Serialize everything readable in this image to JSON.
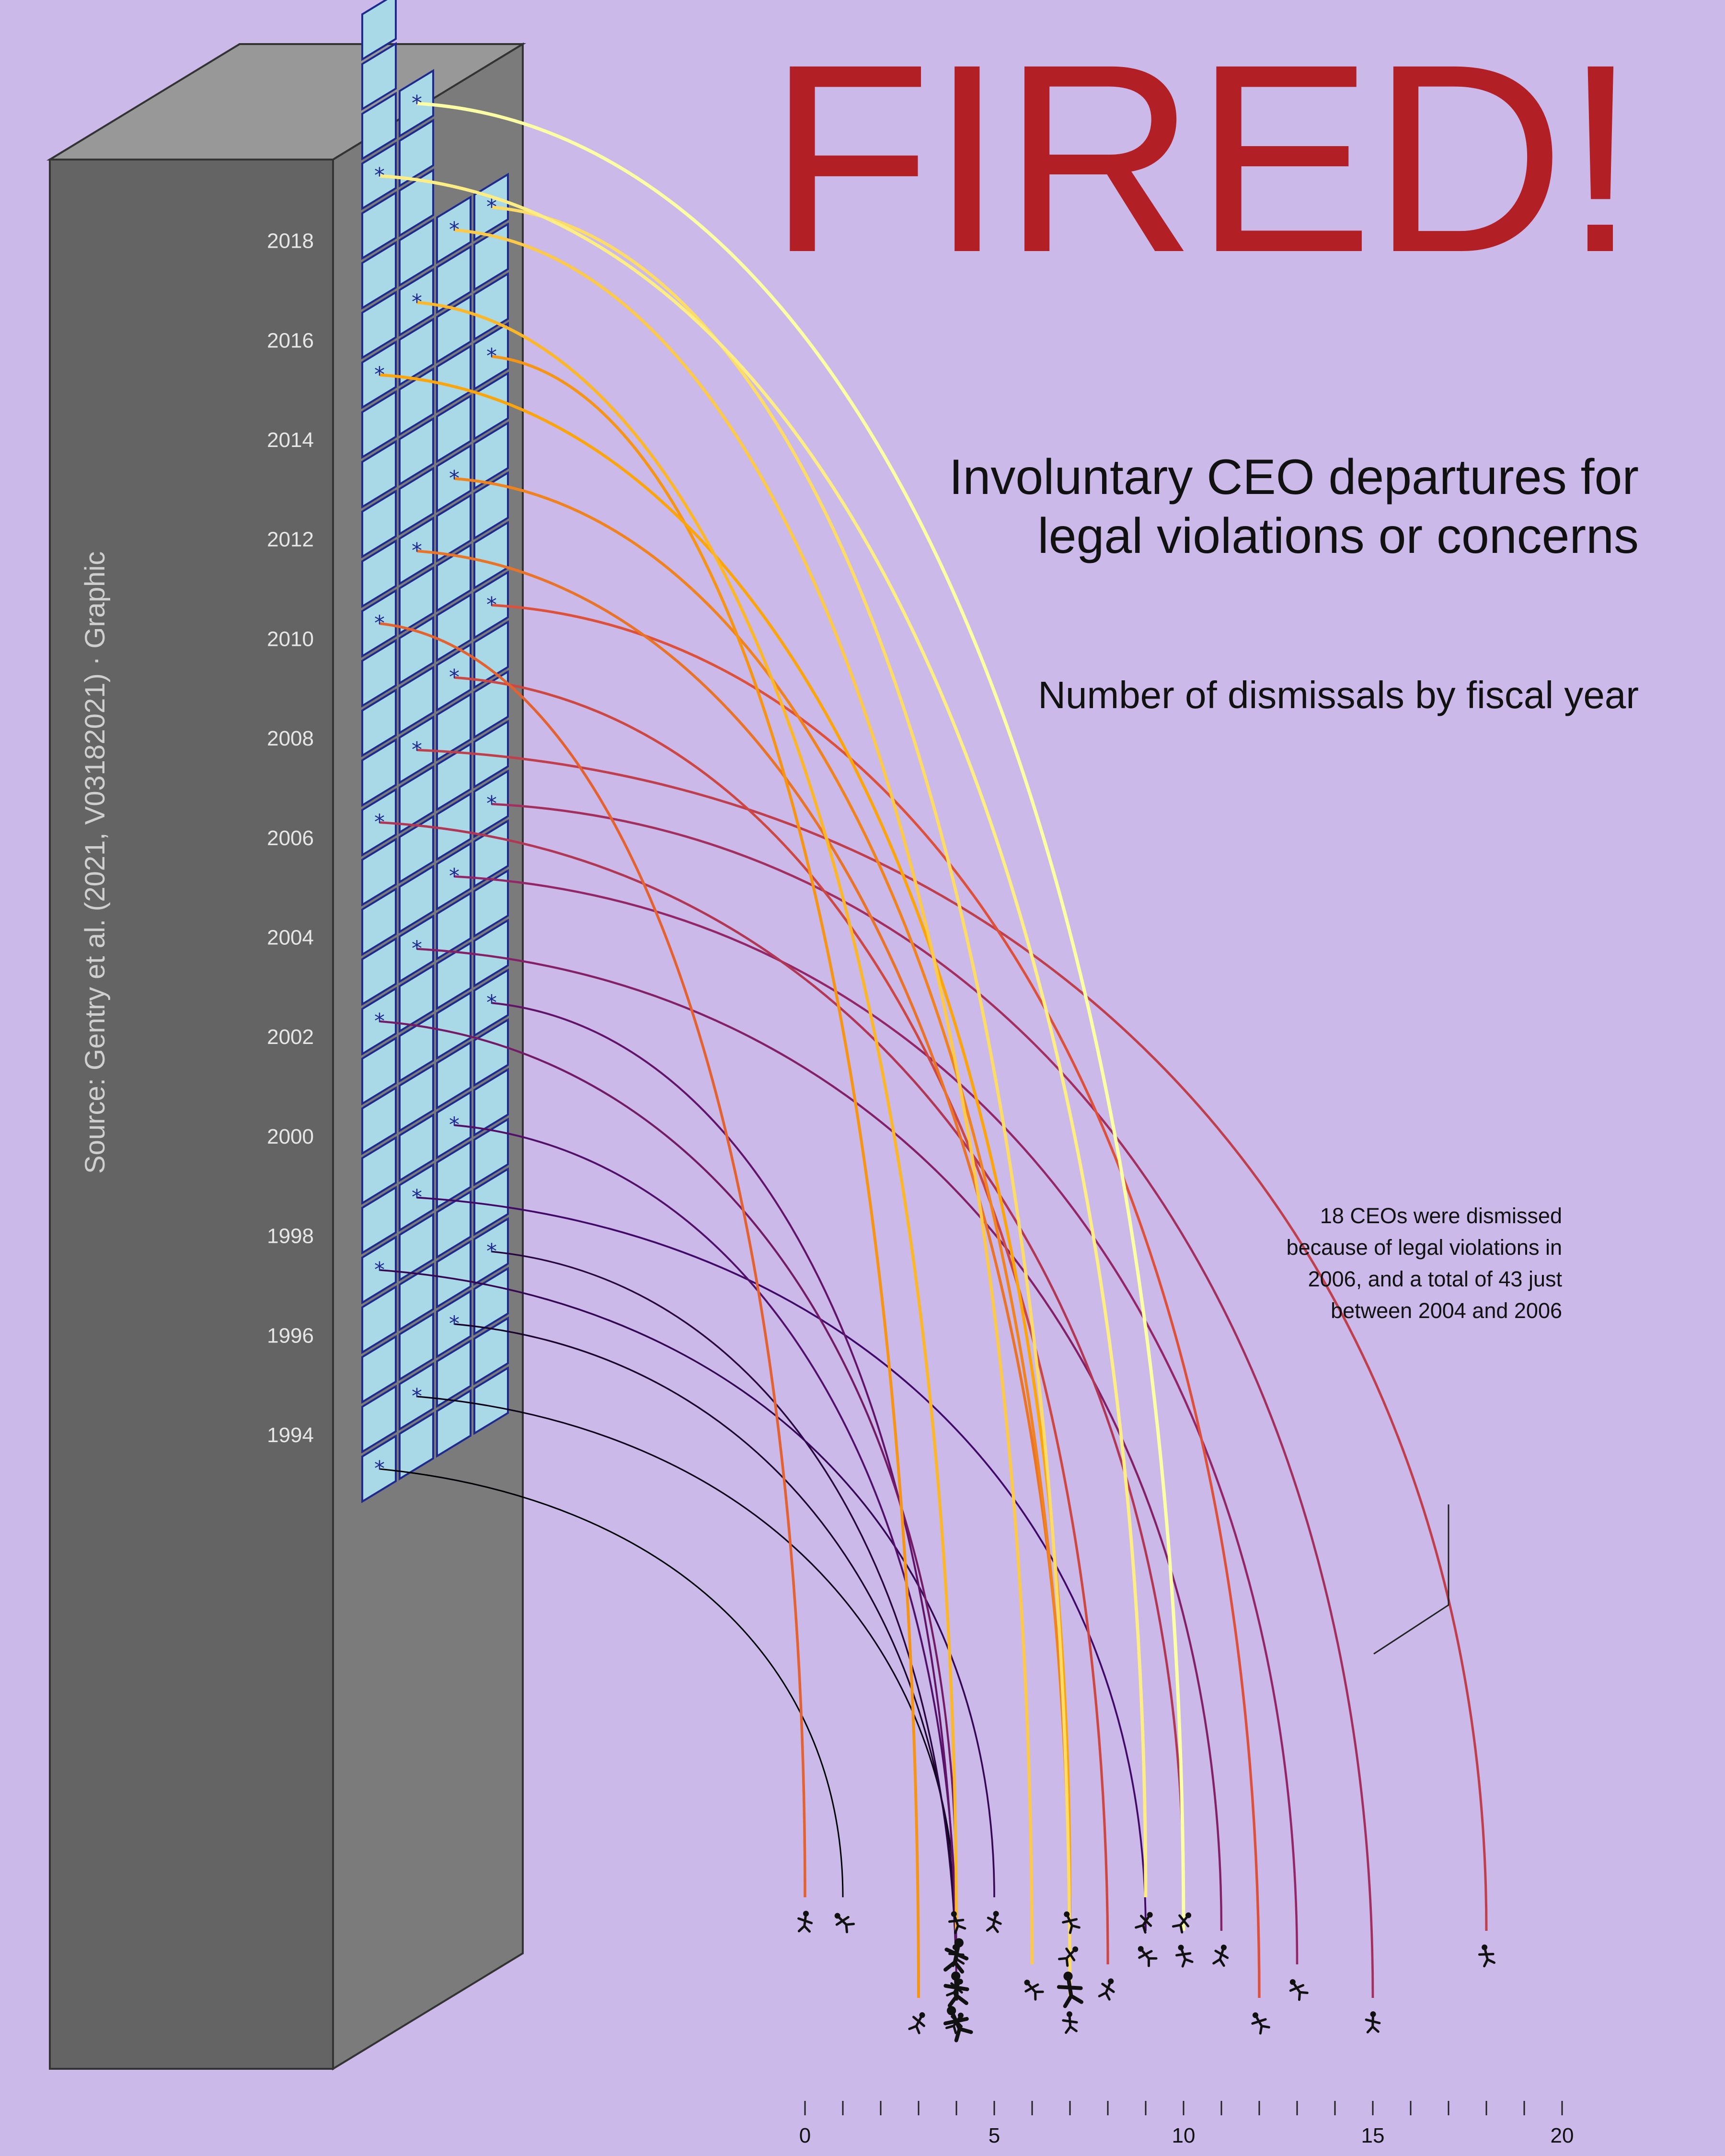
{
  "title": "FIRED!",
  "subtitle_line1": "Involuntary CEO departures for",
  "subtitle_line2": "legal violations or concerns",
  "subsubtitle": "Number of dismissals by fiscal year",
  "annotation": "18 CEOs were dismissed because of legal violations in 2006, and a total of 43 just between 2004 and 2006",
  "source": "Source: Gentry et al. (2021, V03182021) · Graphic",
  "colors": {
    "background": "#cbb9e9",
    "title": "#b22026",
    "building_front": "#646464",
    "building_side": "#7b7b7b",
    "building_top": "#989898",
    "window": "#a9d8e6",
    "window_border": "#1f2a8f"
  },
  "chart_data": {
    "type": "bar",
    "x": [
      1993,
      1994,
      1995,
      1996,
      1997,
      1998,
      1999,
      2000,
      2001,
      2002,
      2003,
      2004,
      2005,
      2006,
      2007,
      2008,
      2009,
      2010,
      2011,
      2012,
      2013,
      2014,
      2015,
      2016,
      2017,
      2018
    ],
    "values": [
      1,
      4,
      4,
      4,
      5,
      9,
      4,
      4,
      4,
      11,
      13,
      15,
      10,
      18,
      8,
      12,
      0,
      7,
      7,
      3,
      7,
      4,
      6,
      7,
      9,
      10
    ],
    "building_year_ticks": [
      "1994",
      "1996",
      "1998",
      "2000",
      "2002",
      "2004",
      "2006",
      "2008",
      "2010",
      "2012",
      "2014",
      "2016",
      "2018"
    ],
    "xlabel": "",
    "ylabel": "",
    "xlim": [
      0,
      20
    ],
    "x_ticks": [
      0,
      5,
      10,
      15,
      20
    ],
    "colormap": "inferno",
    "grid": false
  }
}
